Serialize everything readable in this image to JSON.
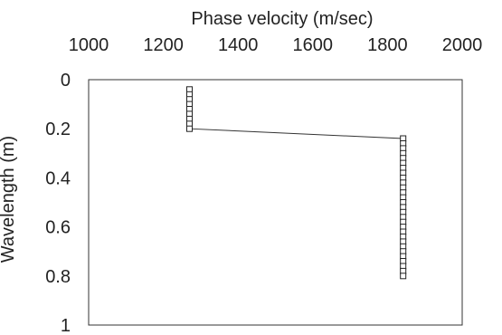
{
  "chart_data": {
    "type": "line",
    "xlabel": "Phase velocity (m/sec)",
    "ylabel": "Wavelength (m)",
    "x_axis_position": "top",
    "y_axis_inverted": true,
    "xlim": [
      1000,
      2000
    ],
    "ylim": [
      0,
      1
    ],
    "x_ticks": [
      "1000",
      "1200",
      "1400",
      "1600",
      "1800",
      "2000"
    ],
    "y_ticks": [
      "0",
      "0.2",
      "0.4",
      "0.6",
      "0.8",
      "1"
    ],
    "grid": false,
    "marker": "square",
    "series": [
      {
        "points": [
          [
            1270,
            0.04
          ],
          [
            1270,
            0.06
          ],
          [
            1270,
            0.08
          ],
          [
            1270,
            0.1
          ],
          [
            1270,
            0.12
          ],
          [
            1270,
            0.14
          ],
          [
            1270,
            0.16
          ],
          [
            1270,
            0.18
          ],
          [
            1270,
            0.2
          ],
          [
            1842,
            0.24
          ],
          [
            1842,
            0.26
          ],
          [
            1842,
            0.28
          ],
          [
            1842,
            0.3
          ],
          [
            1842,
            0.32
          ],
          [
            1842,
            0.34
          ],
          [
            1842,
            0.36
          ],
          [
            1842,
            0.38
          ],
          [
            1842,
            0.4
          ],
          [
            1842,
            0.42
          ],
          [
            1842,
            0.44
          ],
          [
            1842,
            0.46
          ],
          [
            1842,
            0.48
          ],
          [
            1842,
            0.5
          ],
          [
            1842,
            0.52
          ],
          [
            1842,
            0.54
          ],
          [
            1842,
            0.56
          ],
          [
            1842,
            0.58
          ],
          [
            1842,
            0.6
          ],
          [
            1842,
            0.62
          ],
          [
            1842,
            0.64
          ],
          [
            1842,
            0.66
          ],
          [
            1842,
            0.68
          ],
          [
            1842,
            0.7
          ],
          [
            1842,
            0.72
          ],
          [
            1842,
            0.74
          ],
          [
            1842,
            0.76
          ],
          [
            1842,
            0.78
          ],
          [
            1842,
            0.8
          ]
        ]
      }
    ],
    "colors": {
      "line": "#333333",
      "marker_stroke": "#222222",
      "marker_fill": "#ffffff",
      "frame": "#333333"
    }
  }
}
